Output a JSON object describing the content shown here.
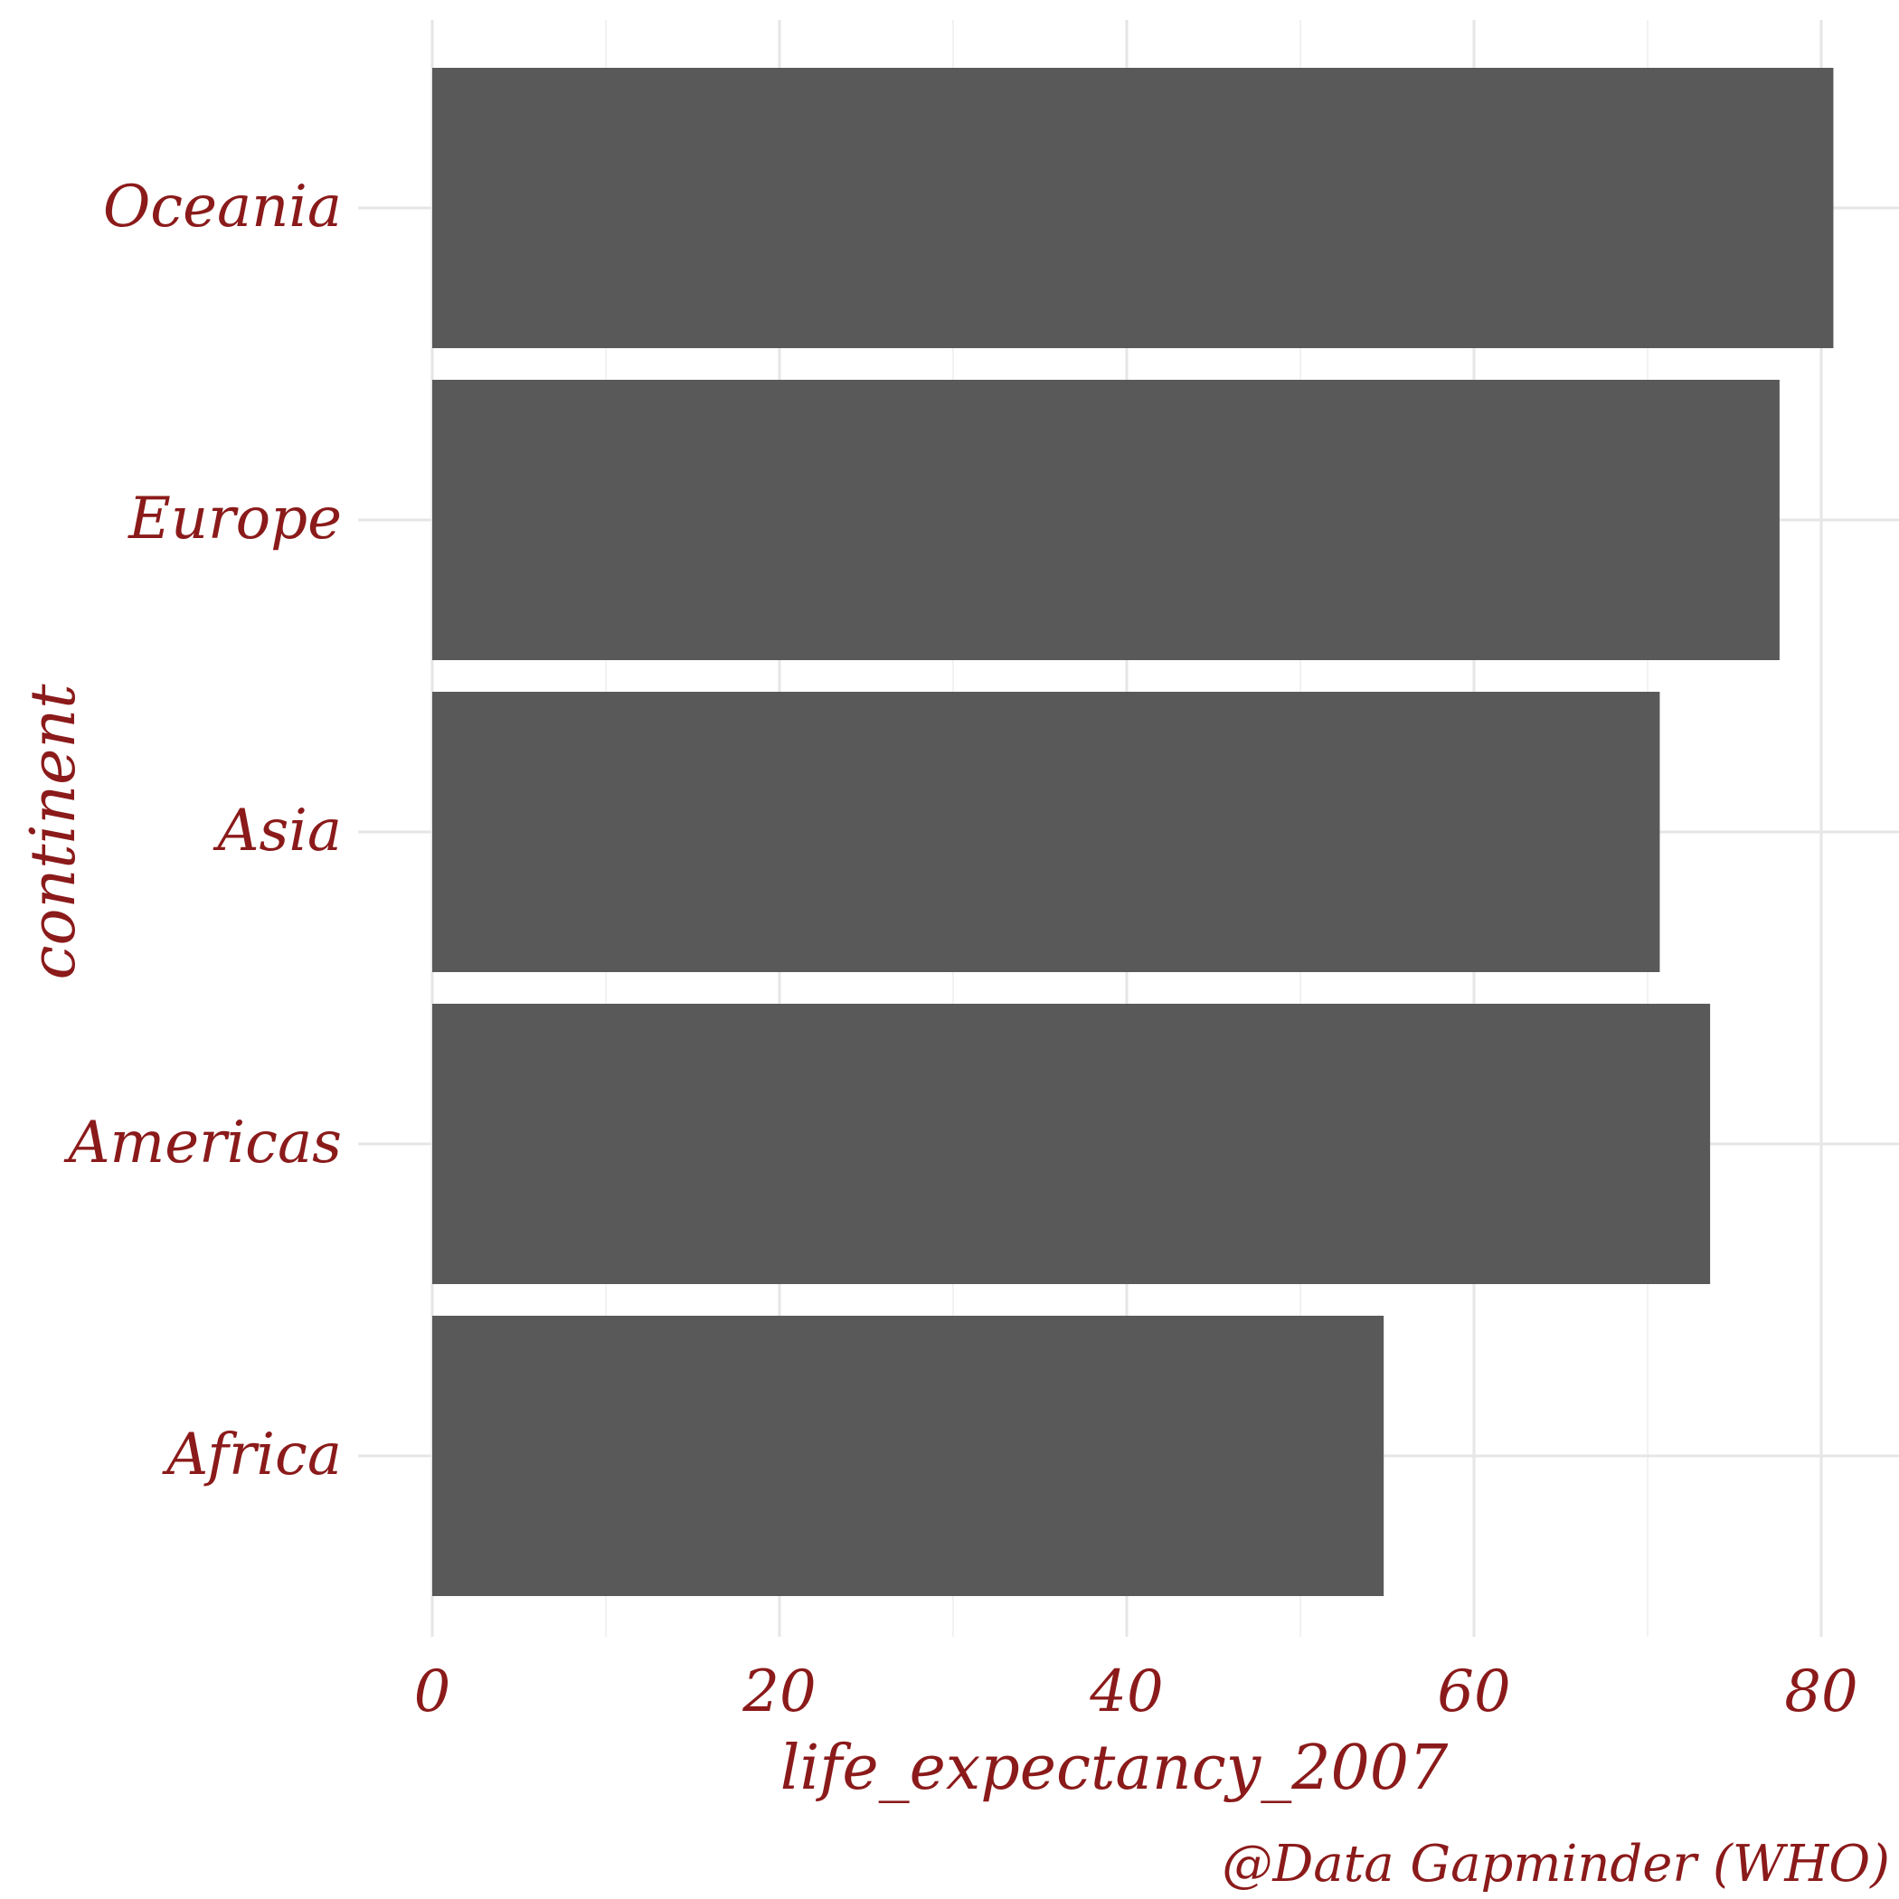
{
  "chart_data": {
    "type": "bar",
    "orientation": "horizontal",
    "categories": [
      "Africa",
      "Americas",
      "Asia",
      "Europe",
      "Oceania"
    ],
    "values": [
      54.8,
      73.6,
      70.7,
      77.6,
      80.7
    ],
    "xlabel": "life_expectancy_2007",
    "ylabel": "continent",
    "caption": "@Data Gapminder (WHO)",
    "x_ticks": [
      "0",
      "20",
      "40",
      "60",
      "80"
    ],
    "x_tick_values": [
      0,
      20,
      40,
      60,
      80
    ],
    "xlim": [
      0,
      83
    ],
    "grid": true,
    "colors": {
      "bar": "#595959",
      "text": "#8b1a1a",
      "grid_major": "#e6e6e6",
      "grid_minor": "#f2f2f2",
      "background": "#ffffff"
    }
  }
}
